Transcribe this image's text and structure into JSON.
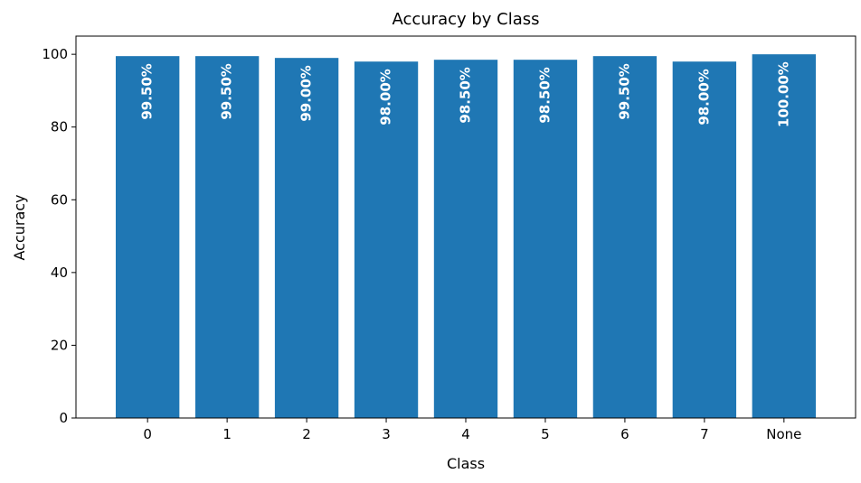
{
  "chart_data": {
    "type": "bar",
    "title": "Accuracy by Class",
    "xlabel": "Class",
    "ylabel": "Accuracy",
    "categories": [
      "0",
      "1",
      "2",
      "3",
      "4",
      "5",
      "6",
      "7",
      "None"
    ],
    "values": [
      99.5,
      99.5,
      99.0,
      98.0,
      98.5,
      98.5,
      99.5,
      98.0,
      100.0
    ],
    "data_labels": [
      "99.50%",
      "99.50%",
      "99.00%",
      "98.00%",
      "98.50%",
      "98.50%",
      "99.50%",
      "98.00%",
      "100.00%"
    ],
    "ylim": [
      0,
      105
    ],
    "yticks": [
      0,
      20,
      40,
      60,
      80,
      100
    ],
    "bar_color": "#1f77b4",
    "label_color": "#ffffff",
    "grid": false,
    "legend": false
  }
}
